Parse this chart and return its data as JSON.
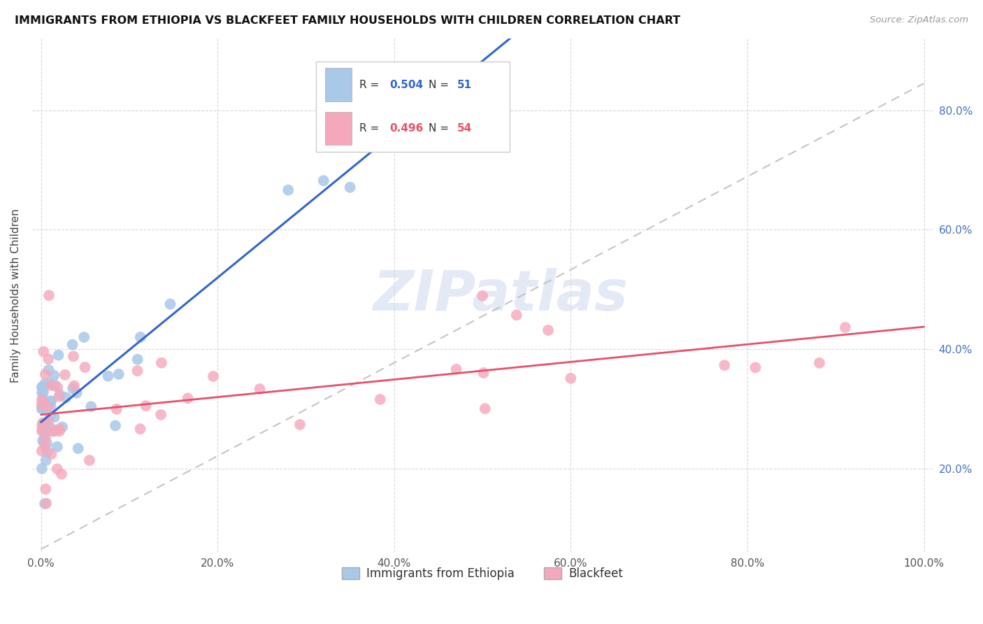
{
  "title": "IMMIGRANTS FROM ETHIOPIA VS BLACKFEET FAMILY HOUSEHOLDS WITH CHILDREN CORRELATION CHART",
  "source": "Source: ZipAtlas.com",
  "ylabel": "Family Households with Children",
  "legend_labels": [
    "Immigrants from Ethiopia",
    "Blackfeet"
  ],
  "legend_R": [
    "0.504",
    "0.496"
  ],
  "legend_N": [
    "51",
    "54"
  ],
  "blue_color": "#aac8e8",
  "pink_color": "#f5a8bc",
  "blue_line_color": "#3366cc",
  "pink_line_color": "#e8506a",
  "diag_color": "#bbbbbb",
  "right_label_color": "#4472c4",
  "x_tick_positions": [
    0.0,
    0.2,
    0.4,
    0.6,
    0.8,
    1.0
  ],
  "x_tick_labels": [
    "0.0%",
    "20.0%",
    "40.0%",
    "60.0%",
    "80.0%",
    "100.0%"
  ],
  "y_tick_positions": [
    0.2,
    0.4,
    0.6,
    0.8
  ],
  "y_tick_labels": [
    "20.0%",
    "40.0%",
    "60.0%",
    "80.0%"
  ],
  "xlim": [
    -0.01,
    1.01
  ],
  "ylim": [
    0.06,
    0.92
  ],
  "watermark": "ZIPatlas",
  "bg_color": "#ffffff",
  "blue_seed": 42,
  "pink_seed": 77
}
